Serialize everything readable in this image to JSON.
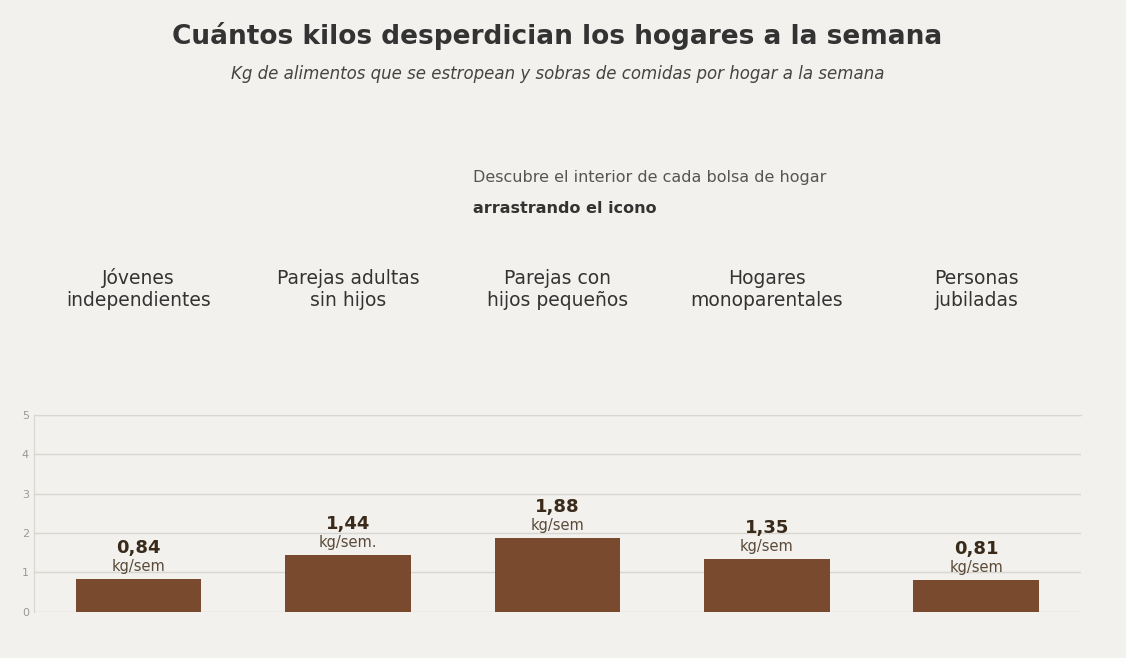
{
  "chart_data": {
    "type": "bar",
    "title": "Cuántos kilos desperdician los hogares a la semana",
    "subtitle": "Kg de alimentos que se estropean y sobras de comidas por hogar a la semana",
    "instruction": "Descubre el interior de cada bolsa de hogar",
    "instruction_bold": "arrastrando el icono",
    "categories": [
      "Jóvenes independientes",
      "Parejas adultas sin hijos",
      "Parejas con hijos pequeños",
      "Hogares monoparentales",
      "Personas jubiladas"
    ],
    "values": [
      0.84,
      1.44,
      1.88,
      1.35,
      0.81
    ],
    "value_labels": [
      "0,84 kg/sem",
      "1,44 kg/sem.",
      "1,88 kg/sem",
      "1,35 kg/sem",
      "0,81 kg/sem"
    ],
    "data_labels": true,
    "color": "#7a4a2e",
    "ylim": [
      0,
      5
    ],
    "yticks": [
      0,
      1,
      2,
      3,
      4,
      5
    ],
    "grid": true
  }
}
